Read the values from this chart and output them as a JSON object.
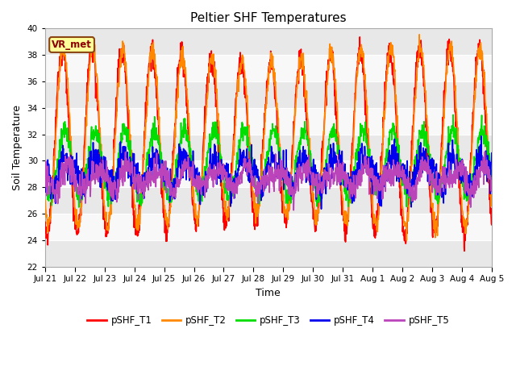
{
  "title": "Peltier SHF Temperatures",
  "xlabel": "Time",
  "ylabel": "Soil Temperature",
  "ylim": [
    22,
    40
  ],
  "yticks": [
    22,
    24,
    26,
    28,
    30,
    32,
    34,
    36,
    38,
    40
  ],
  "series_labels": [
    "pSHF_T1",
    "pSHF_T2",
    "pSHF_T3",
    "pSHF_T4",
    "pSHF_T5"
  ],
  "series_colors": [
    "#ff0000",
    "#ff8800",
    "#00dd00",
    "#0000ee",
    "#bb44bb"
  ],
  "xtick_labels": [
    "Jul 21",
    "Jul 22",
    "Jul 23",
    "Jul 24",
    "Jul 25",
    "Jul 26",
    "Jul 27",
    "Jul 28",
    "Jul 29",
    "Jul 30",
    "Jul 31",
    "Aug 1",
    "Aug 2",
    "Aug 3",
    "Aug 4",
    "Aug 5"
  ],
  "annotation_text": "VR_met",
  "bg_color": "#ffffff",
  "plot_bg_color": "#ffffff",
  "stripe_colors": [
    "#e8e8e8",
    "#f8f8f8"
  ],
  "linewidth": 1.2,
  "figsize": [
    6.4,
    4.8
  ],
  "dpi": 100
}
